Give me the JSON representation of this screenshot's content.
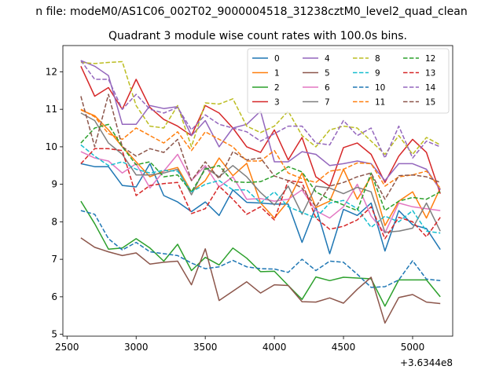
{
  "chart_data": {
    "type": "line",
    "suptitle": "n file: modeM0/AS1C06_002T02_9000004518_31238cztM0_level2_quad_clean",
    "title": "Quadrant 3 module wise count rates with 100.0s bins.",
    "xlabel": "",
    "ylabel": "",
    "x_offset_label": "+3.6344e8",
    "xlim": [
      2470,
      5290
    ],
    "ylim": [
      4.95,
      12.7
    ],
    "xticks": [
      2500,
      3000,
      3500,
      4000,
      4500,
      5000
    ],
    "yticks": [
      5,
      6,
      7,
      8,
      9,
      10,
      11,
      12
    ],
    "grid": false,
    "legend_position": "top-right",
    "x": [
      2600,
      2700,
      2800,
      2900,
      3000,
      3100,
      3200,
      3300,
      3400,
      3500,
      3600,
      3700,
      3800,
      3900,
      4000,
      4100,
      4200,
      4300,
      4400,
      4500,
      4600,
      4700,
      4800,
      4900,
      5000,
      5100,
      5200
    ],
    "series": [
      {
        "name": "0",
        "color": "#1f77b4",
        "dash": "solid",
        "values": [
          9.55,
          9.47,
          9.47,
          8.97,
          8.93,
          9.55,
          8.7,
          8.53,
          8.27,
          8.53,
          8.17,
          8.85,
          8.52,
          8.5,
          8.47,
          8.47,
          7.45,
          8.4,
          7.15,
          8.33,
          8.17,
          8.5,
          7.22,
          8.3,
          7.92,
          7.82,
          7.26
        ]
      },
      {
        "name": "1",
        "color": "#ff7f0e",
        "dash": "solid",
        "values": [
          10.98,
          10.83,
          10.45,
          10.0,
          9.6,
          9.2,
          9.35,
          9.45,
          8.8,
          9.1,
          9.7,
          9.23,
          9.56,
          8.5,
          8.1,
          8.55,
          9.3,
          8.38,
          8.55,
          9.4,
          8.6,
          9.2,
          7.9,
          8.55,
          8.8,
          8.1,
          8.9
        ]
      },
      {
        "name": "2",
        "color": "#2ca02c",
        "dash": "solid",
        "values": [
          8.55,
          7.95,
          7.27,
          7.3,
          7.55,
          7.3,
          6.95,
          7.4,
          6.7,
          7.05,
          6.85,
          7.3,
          7.03,
          6.67,
          6.68,
          6.3,
          5.93,
          6.53,
          6.43,
          6.52,
          6.5,
          6.48,
          5.75,
          6.45,
          6.45,
          6.45,
          6.0
        ]
      },
      {
        "name": "3",
        "color": "#d62728",
        "dash": "solid",
        "values": [
          12.15,
          11.35,
          11.58,
          11.0,
          11.8,
          11.05,
          10.73,
          10.55,
          10.3,
          11.1,
          10.9,
          10.5,
          10.0,
          9.85,
          10.45,
          9.65,
          10.25,
          9.2,
          8.95,
          9.98,
          10.1,
          9.8,
          9.05,
          9.75,
          10.2,
          9.85,
          8.75
        ]
      },
      {
        "name": "4",
        "color": "#9467bd",
        "dash": "solid",
        "values": [
          12.3,
          12.15,
          11.9,
          10.6,
          10.6,
          11.1,
          11.02,
          11.07,
          10.3,
          10.7,
          10.0,
          10.5,
          10.6,
          10.95,
          9.6,
          9.6,
          9.87,
          9.8,
          9.5,
          9.55,
          9.62,
          9.55,
          9.1,
          9.55,
          9.55,
          9.4,
          8.85
        ]
      },
      {
        "name": "5",
        "color": "#8c564b",
        "dash": "solid",
        "values": [
          7.57,
          7.32,
          7.2,
          7.1,
          7.17,
          6.87,
          6.92,
          6.95,
          6.32,
          7.28,
          5.9,
          6.15,
          6.4,
          6.1,
          6.32,
          6.3,
          5.87,
          5.86,
          5.97,
          5.83,
          6.2,
          6.52,
          5.3,
          5.98,
          6.06,
          5.86,
          5.82
        ]
      },
      {
        "name": "6",
        "color": "#e377c2",
        "dash": "solid",
        "values": [
          9.87,
          9.7,
          9.62,
          9.3,
          9.55,
          8.9,
          9.35,
          9.8,
          9.1,
          9.5,
          8.93,
          9.2,
          8.6,
          8.62,
          8.55,
          8.6,
          8.85,
          8.3,
          8.1,
          8.4,
          9.0,
          8.15,
          7.7,
          8.5,
          8.4,
          8.35,
          8.3
        ]
      },
      {
        "name": "7",
        "color": "#7f7f7f",
        "dash": "solid",
        "values": [
          10.9,
          10.7,
          10.1,
          9.8,
          9.25,
          9.25,
          9.3,
          9.4,
          8.72,
          9.45,
          9.2,
          9.5,
          9.2,
          8.78,
          8.45,
          8.95,
          8.2,
          8.95,
          8.9,
          8.75,
          8.92,
          8.8,
          7.72,
          7.75,
          7.83,
          8.5,
          7.75
        ]
      },
      {
        "name": "8",
        "color": "#bcbd22",
        "dash": "dashed",
        "values": [
          12.25,
          12.22,
          12.25,
          12.27,
          11.1,
          10.55,
          10.5,
          11.1,
          10.0,
          11.17,
          11.14,
          11.28,
          10.55,
          10.38,
          10.55,
          10.95,
          10.3,
          10.0,
          10.45,
          10.55,
          10.5,
          10.15,
          9.8,
          10.3,
          9.8,
          10.25,
          10.05
        ]
      },
      {
        "name": "9",
        "color": "#17becf",
        "dash": "dashed",
        "values": [
          10.05,
          9.75,
          9.5,
          9.6,
          9.4,
          9.3,
          9.37,
          9.35,
          8.8,
          9.0,
          9.1,
          8.85,
          8.85,
          8.5,
          8.8,
          8.4,
          8.25,
          8.1,
          8.5,
          8.57,
          8.35,
          7.85,
          8.15,
          8.0,
          8.3,
          7.75,
          7.7
        ]
      },
      {
        "name": "10",
        "color": "#1f77b4",
        "dash": "dashed",
        "values": [
          8.3,
          8.2,
          7.55,
          7.25,
          7.45,
          7.2,
          7.15,
          7.1,
          6.9,
          6.75,
          6.8,
          6.97,
          6.8,
          6.75,
          6.74,
          6.65,
          7.0,
          6.7,
          6.95,
          6.92,
          6.6,
          6.25,
          6.27,
          6.45,
          6.96,
          6.47,
          6.43
        ]
      },
      {
        "name": "11",
        "color": "#ff7f0e",
        "dash": "dashed",
        "values": [
          11.0,
          10.8,
          10.35,
          10.2,
          10.5,
          10.3,
          10.1,
          10.4,
          9.9,
          10.4,
          10.2,
          10.0,
          9.62,
          9.62,
          9.9,
          9.3,
          9.15,
          9.05,
          9.35,
          9.4,
          9.57,
          9.55,
          8.95,
          9.2,
          9.25,
          9.35,
          8.9
        ]
      },
      {
        "name": "12",
        "color": "#2ca02c",
        "dash": "dashed",
        "values": [
          10.1,
          10.5,
          10.6,
          10.0,
          9.52,
          9.6,
          9.2,
          9.25,
          8.8,
          9.4,
          9.5,
          9.07,
          9.05,
          9.07,
          9.23,
          9.47,
          9.33,
          8.8,
          8.6,
          8.45,
          8.3,
          9.3,
          8.3,
          8.55,
          8.65,
          8.6,
          8.8
        ]
      },
      {
        "name": "13",
        "color": "#d62728",
        "dash": "dashed",
        "values": [
          9.55,
          9.95,
          9.95,
          9.9,
          8.7,
          8.97,
          9.02,
          9.05,
          8.22,
          8.35,
          8.95,
          8.6,
          8.2,
          8.4,
          8.05,
          9.1,
          9.05,
          8.1,
          7.8,
          7.88,
          8.05,
          8.4,
          7.55,
          8.12,
          8.0,
          7.6,
          8.12
        ]
      },
      {
        "name": "14",
        "color": "#9467bd",
        "dash": "dashed",
        "values": [
          12.3,
          11.8,
          11.8,
          11.0,
          11.4,
          11.0,
          10.9,
          11.05,
          10.45,
          10.85,
          10.6,
          10.5,
          10.4,
          10.15,
          10.35,
          10.55,
          10.55,
          10.1,
          10.05,
          10.7,
          10.3,
          10.5,
          9.7,
          10.55,
          9.7,
          10.15,
          10.0
        ]
      },
      {
        "name": "15",
        "color": "#8c564b",
        "dash": "dashed",
        "values": [
          11.35,
          10.0,
          11.4,
          10.0,
          9.75,
          9.95,
          9.85,
          10.2,
          9.1,
          9.6,
          9.15,
          9.87,
          9.65,
          9.7,
          9.22,
          9.1,
          8.9,
          8.4,
          8.95,
          9.05,
          9.2,
          9.3,
          8.6,
          9.23,
          9.25,
          9.2,
          9.05
        ]
      }
    ]
  }
}
